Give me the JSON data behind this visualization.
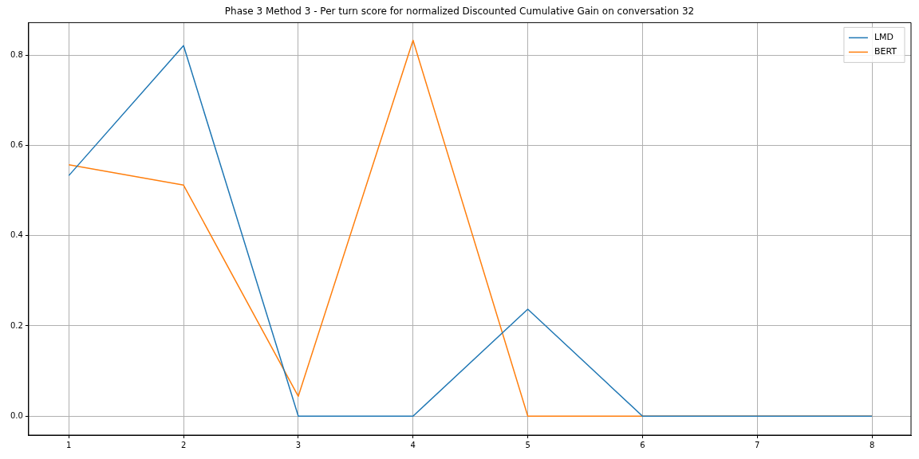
{
  "chart_data": {
    "type": "line",
    "title": "Phase 3 Method 3 - Per turn score for normalized Discounted Cumulative Gain on conversation 32",
    "x": [
      1,
      2,
      3,
      4,
      5,
      6,
      7,
      8
    ],
    "series": [
      {
        "name": "LMD",
        "color": "#1f77b4",
        "values": [
          0.533,
          0.821,
          0,
          0,
          0.237,
          0,
          0,
          0
        ]
      },
      {
        "name": "BERT",
        "color": "#ff7f0e",
        "values": [
          0.557,
          0.512,
          0.044,
          0.833,
          0,
          0,
          0,
          0
        ]
      }
    ],
    "xlim": [
      0.65,
      8.34
    ],
    "xticks": [
      1,
      2,
      3,
      4,
      5,
      6,
      7,
      8
    ],
    "ylim": [
      -0.042,
      0.872
    ],
    "yticks": [
      {
        "value": 0,
        "label": "0.0"
      },
      {
        "value": 0.2,
        "label": "0.2"
      },
      {
        "value": 0.4,
        "label": "0.4"
      },
      {
        "value": 0.6,
        "label": "0.6"
      },
      {
        "value": 0.8,
        "label": "0.8"
      }
    ],
    "grid": true,
    "legend": "top right",
    "marker": "none",
    "line_style": "solid"
  }
}
